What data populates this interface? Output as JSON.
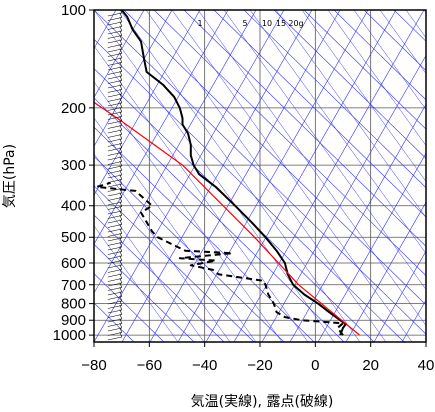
{
  "chart_data": {
    "type": "line",
    "title": "",
    "xlabel": "気温(実線), 露点(破線)",
    "ylabel": "気圧(hPa)",
    "xlim": [
      -80,
      40
    ],
    "ylim": [
      1050,
      100
    ],
    "y_scale": "log",
    "x_ticks": [
      "−80",
      "−60",
      "−40",
      "−20",
      "0",
      "20",
      "40"
    ],
    "x_tick_values": [
      -80,
      -60,
      -40,
      -20,
      0,
      20,
      40
    ],
    "y_ticks": [
      "100",
      "200",
      "300",
      "400",
      "500",
      "600",
      "700",
      "800",
      "900",
      "1000"
    ],
    "y_tick_values": [
      100,
      200,
      300,
      400,
      500,
      600,
      700,
      800,
      900,
      1000
    ],
    "mixing_ratio_labels": [
      "1",
      "5",
      "10",
      "15",
      "20g"
    ],
    "series": [
      {
        "style": "solid",
        "color": "#000000",
        "points": [
          [
            1000,
            9
          ],
          [
            950,
            10
          ],
          [
            925,
            11
          ],
          [
            900,
            9
          ],
          [
            850,
            5
          ],
          [
            800,
            1
          ],
          [
            750,
            -4
          ],
          [
            700,
            -8
          ],
          [
            650,
            -10
          ],
          [
            600,
            -11
          ],
          [
            550,
            -14
          ],
          [
            500,
            -18
          ],
          [
            450,
            -23
          ],
          [
            400,
            -29
          ],
          [
            350,
            -36
          ],
          [
            320,
            -42
          ],
          [
            300,
            -44
          ],
          [
            280,
            -45
          ],
          [
            260,
            -45
          ],
          [
            240,
            -46
          ],
          [
            225,
            -48
          ],
          [
            215,
            -48
          ],
          [
            200,
            -49
          ],
          [
            185,
            -51
          ],
          [
            170,
            -55
          ],
          [
            155,
            -61
          ],
          [
            140,
            -62
          ],
          [
            125,
            -63
          ],
          [
            115,
            -66
          ],
          [
            105,
            -68
          ],
          [
            100,
            -70
          ]
        ]
      },
      {
        "style": "dashed",
        "color": "#000000",
        "points": [
          [
            1000,
            10
          ],
          [
            975,
            9
          ],
          [
            950,
            8
          ],
          [
            920,
            10
          ],
          [
            900,
            -5
          ],
          [
            880,
            -11
          ],
          [
            850,
            -14
          ],
          [
            800,
            -15
          ],
          [
            750,
            -17
          ],
          [
            700,
            -18
          ],
          [
            680,
            -19
          ],
          [
            650,
            -35
          ],
          [
            630,
            -37
          ],
          [
            610,
            -45
          ],
          [
            590,
            -36
          ],
          [
            580,
            -49
          ],
          [
            560,
            -30
          ],
          [
            550,
            -47
          ],
          [
            500,
            -57
          ],
          [
            480,
            -59
          ],
          [
            420,
            -63
          ],
          [
            400,
            -59
          ],
          [
            360,
            -65
          ],
          [
            350,
            -79
          ],
          [
            340,
            -74
          ]
        ]
      },
      {
        "style": "solid",
        "color": "#ff0000",
        "points": [
          [
            1000,
            16
          ],
          [
            700,
            -6
          ],
          [
            500,
            -22
          ],
          [
            300,
            -48
          ],
          [
            220,
            -70
          ],
          [
            180,
            -85
          ]
        ]
      }
    ],
    "background_lines": {
      "isotherms_color": "#3333ff",
      "dry_adiabats_color": "#3333ff",
      "moist_adiabats_color": "#3333ff",
      "mixing_ratio_color": "#3333ff"
    },
    "wind_barbs": {
      "color": "#000000",
      "x_position": -75
    },
    "grid": true,
    "legend": "none"
  }
}
